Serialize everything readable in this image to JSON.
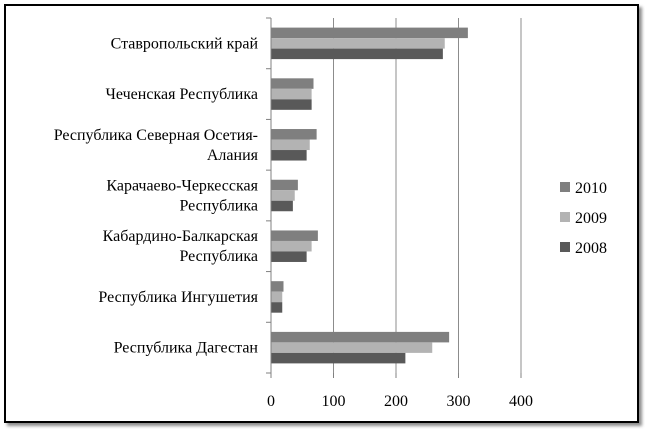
{
  "chart_data": {
    "type": "bar",
    "orientation": "horizontal",
    "categories": [
      "Ставропольский край",
      "Чеченская Республика",
      "Республика Северная Осетия-Алания",
      "Карачаево-Черкесская Республика",
      "Кабардино-Балкарская Республика",
      "Республика Ингушетия",
      "Республика Дагестан"
    ],
    "category_lines": [
      [
        "Ставропольский край"
      ],
      [
        "Чеченская Республика"
      ],
      [
        "Республика Северная Осетия-",
        "Алания"
      ],
      [
        "Карачаево-Черкесская",
        "Республика"
      ],
      [
        "Кабардино-Балкарская",
        "Республика"
      ],
      [
        "Республика Ингушетия"
      ],
      [
        "Республика Дагестан"
      ]
    ],
    "series": [
      {
        "name": "2010",
        "color": "#7f7f7f",
        "values": [
          315,
          68,
          73,
          43,
          75,
          20,
          285
        ]
      },
      {
        "name": "2009",
        "color": "#b3b3b3",
        "values": [
          278,
          65,
          62,
          38,
          65,
          18,
          258
        ]
      },
      {
        "name": "2008",
        "color": "#595959",
        "values": [
          275,
          65,
          57,
          35,
          57,
          18,
          215
        ]
      }
    ],
    "xlim": [
      0,
      400
    ],
    "xticks": [
      "0",
      "100",
      "200",
      "300",
      "400"
    ],
    "grid": "vertical",
    "legend_position": "right",
    "legend_order": [
      "2010",
      "2009",
      "2008"
    ]
  }
}
